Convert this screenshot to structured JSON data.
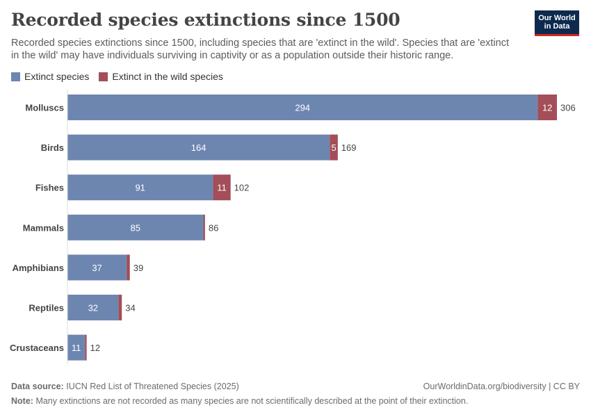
{
  "header": {
    "title": "Recorded species extinctions since 1500",
    "subtitle": "Recorded species extinctions since 1500, including species that are 'extinct in the wild'. Species that are 'extinct in the wild' may have individuals surviving in captivity or as a population outside their historic range.",
    "logo_line1": "Our World",
    "logo_line2": "in Data"
  },
  "footer": {
    "source_label": "Data source:",
    "source_text": "IUCN Red List of Threatened Species (2025)",
    "credit": "OurWorldinData.org/biodiversity | CC BY",
    "note_label": "Note:",
    "note_text": "Many extinctions are not recorded as many species are not scientifically described at the point of their extinction."
  },
  "colors": {
    "extinct": "#6d86b0",
    "extinct_in_wild": "#a34e58",
    "axis": "#dddddd",
    "label": "#444444"
  },
  "chart_data": {
    "type": "bar",
    "orientation": "horizontal",
    "stacked": true,
    "categories": [
      "Molluscs",
      "Birds",
      "Fishes",
      "Mammals",
      "Amphibians",
      "Reptiles",
      "Crustaceans"
    ],
    "series": [
      {
        "name": "Extinct species",
        "values": [
          294,
          164,
          91,
          85,
          37,
          32,
          11
        ]
      },
      {
        "name": "Extinct in the wild species",
        "values": [
          12,
          5,
          11,
          1,
          2,
          2,
          1
        ]
      }
    ],
    "totals": [
      306,
      169,
      102,
      86,
      39,
      34,
      12
    ],
    "legend_position": "top-left",
    "grid": false
  }
}
